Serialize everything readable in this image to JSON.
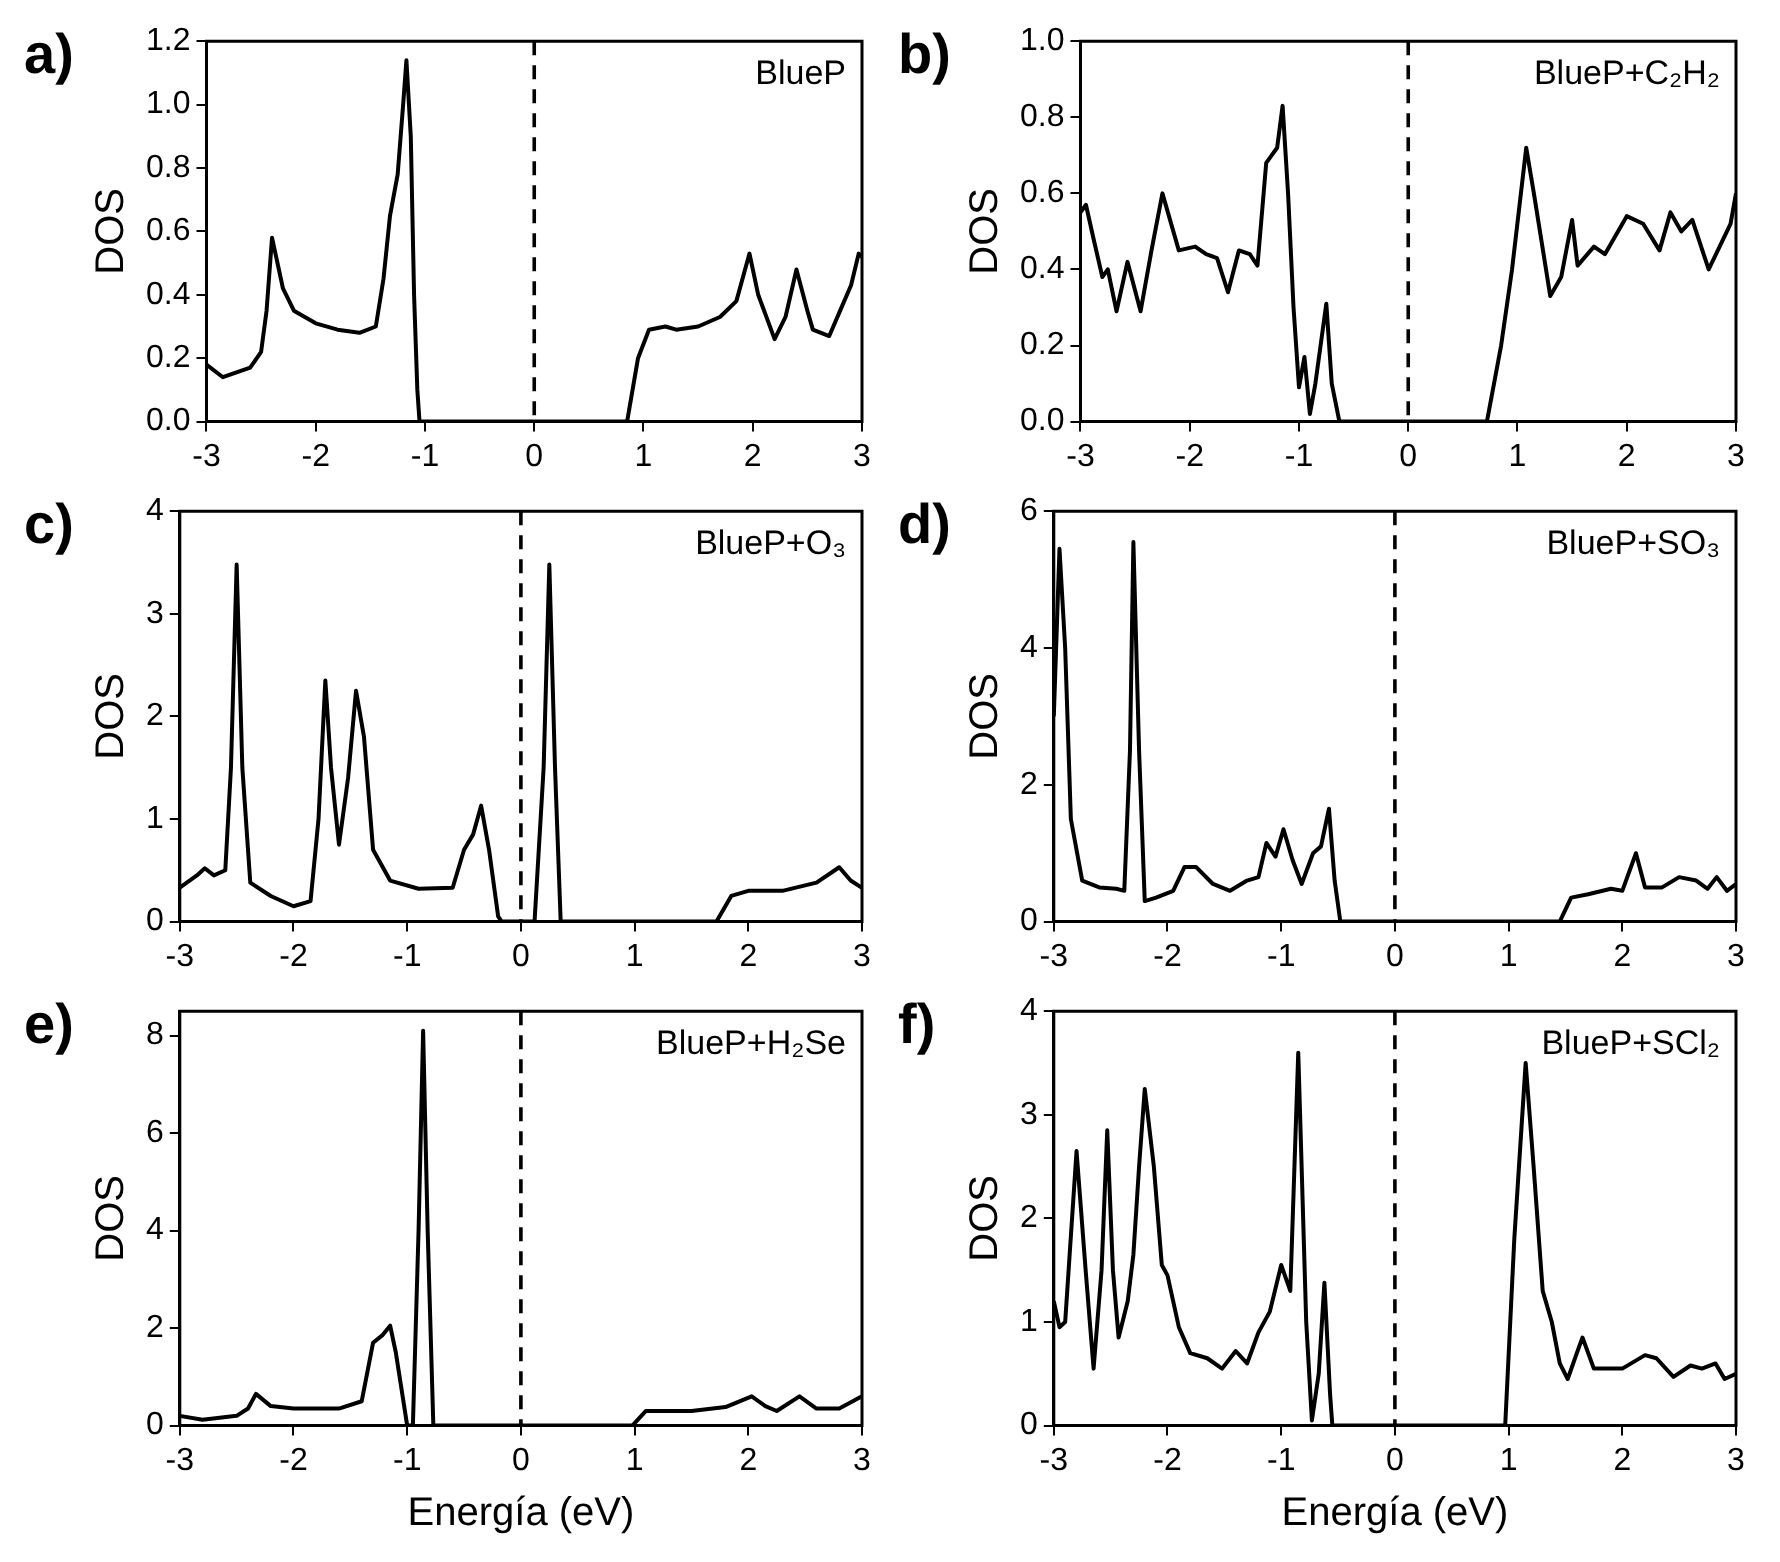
{
  "chart_data": [
    {
      "type": "line",
      "title": "a)",
      "ylabel": "DOS",
      "annotations": [
        "BlueP"
      ],
      "marker": "none",
      "grid": false,
      "xlim": [
        -3,
        3
      ],
      "xticks": [
        -3,
        -2,
        -1,
        0,
        1,
        2,
        3
      ],
      "ylim": [
        0,
        1.2
      ],
      "yticks": [
        {
          "value": 0,
          "label": "0.0"
        },
        {
          "value": 0.2,
          "label": "0.2"
        },
        {
          "value": 0.4,
          "label": "0.4"
        },
        {
          "value": 0.6,
          "label": "0.6"
        },
        {
          "value": 0.8,
          "label": "0.8"
        },
        {
          "value": 1,
          "label": "1.0"
        },
        {
          "value": 1.2,
          "label": "1.2"
        }
      ],
      "ref_lines": [
        {
          "axis": "x",
          "value": 0,
          "color": "#000000",
          "line_style": "dashed"
        }
      ],
      "x": [
        -3,
        -2.85,
        -2.6,
        -2.5,
        -2.45,
        -2.4,
        -2.3,
        -2.2,
        -2,
        -1.8,
        -1.6,
        -1.45,
        -1.38,
        -1.32,
        -1.25,
        -1.2,
        -1.17,
        -1.13,
        -1.1,
        -1.07,
        -1.05,
        0.85,
        0.95,
        1.05,
        1.2,
        1.3,
        1.5,
        1.7,
        1.85,
        1.97,
        2.05,
        2.2,
        2.3,
        2.4,
        2.5,
        2.55,
        2.7,
        2.8,
        2.9,
        2.97,
        3
      ],
      "series": [
        {
          "color": "#000000",
          "values": [
            0.18,
            0.14,
            0.17,
            0.22,
            0.35,
            0.58,
            0.42,
            0.35,
            0.31,
            0.29,
            0.28,
            0.3,
            0.45,
            0.65,
            0.78,
            1.0,
            1.14,
            0.9,
            0.4,
            0.1,
            0,
            0,
            0.2,
            0.29,
            0.3,
            0.29,
            0.3,
            0.33,
            0.38,
            0.53,
            0.4,
            0.26,
            0.33,
            0.48,
            0.35,
            0.29,
            0.27,
            0.35,
            0.43,
            0.53,
            0.52
          ]
        }
      ]
    },
    {
      "type": "line",
      "title": "b)",
      "ylabel": "DOS",
      "annotations": [
        "BlueP+C₂H₂"
      ],
      "marker": "none",
      "grid": false,
      "xlim": [
        -3,
        3
      ],
      "xticks": [
        -3,
        -2,
        -1,
        0,
        1,
        2,
        3
      ],
      "ylim": [
        0,
        1
      ],
      "yticks": [
        {
          "value": 0,
          "label": "0.0"
        },
        {
          "value": 0.2,
          "label": "0.2"
        },
        {
          "value": 0.4,
          "label": "0.4"
        },
        {
          "value": 0.6,
          "label": "0.6"
        },
        {
          "value": 0.8,
          "label": "0.8"
        },
        {
          "value": 1,
          "label": "1.0"
        }
      ],
      "ref_lines": [
        {
          "axis": "x",
          "value": 0,
          "color": "#000000",
          "line_style": "dashed"
        }
      ],
      "x": [
        -3,
        -2.95,
        -2.88,
        -2.8,
        -2.75,
        -2.67,
        -2.57,
        -2.45,
        -2.35,
        -2.25,
        -2.1,
        -1.95,
        -1.85,
        -1.75,
        -1.65,
        -1.55,
        -1.45,
        -1.38,
        -1.3,
        -1.2,
        -1.15,
        -1.1,
        -1.05,
        -1,
        -0.95,
        -0.9,
        -0.85,
        -0.75,
        -0.7,
        -0.63,
        0.72,
        0.85,
        0.95,
        1.08,
        1.15,
        1.3,
        1.4,
        1.5,
        1.55,
        1.7,
        1.8,
        2,
        2.15,
        2.3,
        2.4,
        2.5,
        2.6,
        2.75,
        2.85,
        2.95,
        3
      ],
      "series": [
        {
          "color": "#000000",
          "values": [
            0.55,
            0.57,
            0.48,
            0.38,
            0.4,
            0.29,
            0.42,
            0.29,
            0.45,
            0.6,
            0.45,
            0.46,
            0.44,
            0.43,
            0.34,
            0.45,
            0.44,
            0.41,
            0.68,
            0.72,
            0.83,
            0.6,
            0.3,
            0.09,
            0.17,
            0.02,
            0.1,
            0.31,
            0.1,
            0,
            0,
            0.2,
            0.4,
            0.72,
            0.6,
            0.33,
            0.38,
            0.53,
            0.41,
            0.46,
            0.44,
            0.54,
            0.52,
            0.45,
            0.55,
            0.5,
            0.53,
            0.4,
            0.46,
            0.52,
            0.6
          ]
        }
      ]
    },
    {
      "type": "line",
      "title": "c)",
      "ylabel": "DOS",
      "annotations": [
        "BlueP+O₃"
      ],
      "marker": "none",
      "grid": false,
      "xlim": [
        -3,
        3
      ],
      "xticks": [
        -3,
        -2,
        -1,
        0,
        1,
        2,
        3
      ],
      "ylim": [
        0,
        4
      ],
      "yticks": [
        0,
        1,
        2,
        3,
        4
      ],
      "ref_lines": [
        {
          "axis": "x",
          "value": 0,
          "color": "#000000",
          "line_style": "dashed"
        }
      ],
      "x": [
        -3,
        -2.85,
        -2.78,
        -2.7,
        -2.6,
        -2.55,
        -2.5,
        -2.45,
        -2.38,
        -2.2,
        -2,
        -1.85,
        -1.78,
        -1.72,
        -1.67,
        -1.6,
        -1.52,
        -1.45,
        -1.38,
        -1.3,
        -1.15,
        -0.9,
        -0.6,
        -0.5,
        -0.42,
        -0.35,
        -0.28,
        -0.2,
        -0.17,
        0.12,
        0.2,
        0.25,
        0.3,
        0.35,
        1.72,
        1.85,
        2,
        2.3,
        2.6,
        2.8,
        2.9,
        3
      ],
      "series": [
        {
          "color": "#000000",
          "values": [
            0.33,
            0.45,
            0.52,
            0.45,
            0.5,
            1.5,
            3.48,
            1.5,
            0.38,
            0.25,
            0.15,
            0.2,
            1,
            2.35,
            1.5,
            0.75,
            1.4,
            2.25,
            1.8,
            0.7,
            0.4,
            0.32,
            0.33,
            0.7,
            0.85,
            1.13,
            0.7,
            0.05,
            0,
            0,
            1.5,
            3.48,
            1.5,
            0,
            0,
            0.25,
            0.3,
            0.3,
            0.38,
            0.53,
            0.4,
            0.33
          ]
        }
      ]
    },
    {
      "type": "line",
      "title": "d)",
      "ylabel": "DOS",
      "annotations": [
        "BlueP+SO₃"
      ],
      "marker": "none",
      "grid": false,
      "xlim": [
        -3,
        3
      ],
      "xticks": [
        -3,
        -2,
        -1,
        0,
        1,
        2,
        3
      ],
      "ylim": [
        0,
        6
      ],
      "yticks": [
        0,
        2,
        4,
        6
      ],
      "ref_lines": [
        {
          "axis": "x",
          "value": 0,
          "color": "#000000",
          "line_style": "dashed"
        }
      ],
      "x": [
        -3,
        -2.95,
        -2.9,
        -2.85,
        -2.75,
        -2.6,
        -2.45,
        -2.38,
        -2.33,
        -2.3,
        -2.25,
        -2.2,
        -2.1,
        -1.95,
        -1.85,
        -1.75,
        -1.6,
        -1.45,
        -1.3,
        -1.2,
        -1.13,
        -1.05,
        -0.98,
        -0.9,
        -0.82,
        -0.72,
        -0.65,
        -0.58,
        -0.53,
        -0.48,
        1.45,
        1.55,
        1.7,
        1.9,
        2,
        2.12,
        2.2,
        2.35,
        2.5,
        2.65,
        2.75,
        2.83,
        2.92,
        3
      ],
      "series": [
        {
          "color": "#000000",
          "values": [
            3,
            5.45,
            4,
            1.5,
            0.6,
            0.5,
            0.48,
            0.45,
            2.5,
            5.55,
            2.5,
            0.3,
            0.35,
            0.45,
            0.8,
            0.8,
            0.55,
            0.45,
            0.6,
            0.65,
            1.15,
            0.95,
            1.35,
            0.9,
            0.55,
            1,
            1.1,
            1.65,
            0.6,
            0,
            0,
            0.35,
            0.4,
            0.48,
            0.45,
            1,
            0.5,
            0.5,
            0.65,
            0.6,
            0.48,
            0.65,
            0.45,
            0.55
          ]
        }
      ]
    },
    {
      "type": "line",
      "title": "e)",
      "xlabel": "Energía (eV)",
      "ylabel": "DOS",
      "annotations": [
        "BlueP+H₂Se"
      ],
      "marker": "none",
      "grid": false,
      "xlim": [
        -3,
        3
      ],
      "xticks": [
        -3,
        -2,
        -1,
        0,
        1,
        2,
        3
      ],
      "ylim": [
        0,
        8.5
      ],
      "yticks": [
        0,
        2,
        4,
        6,
        8
      ],
      "ref_lines": [
        {
          "axis": "x",
          "value": 0,
          "color": "#000000",
          "line_style": "dashed"
        }
      ],
      "x": [
        -3,
        -2.8,
        -2.5,
        -2.4,
        -2.33,
        -2.2,
        -2,
        -1.6,
        -1.4,
        -1.3,
        -1.22,
        -1.15,
        -1.1,
        -1,
        -0.95,
        -0.9,
        -0.86,
        -0.82,
        -0.77,
        0.98,
        1.1,
        1.5,
        1.8,
        2.03,
        2.15,
        2.25,
        2.45,
        2.6,
        2.8,
        3
      ],
      "series": [
        {
          "color": "#000000",
          "values": [
            0.2,
            0.12,
            0.2,
            0.35,
            0.65,
            0.4,
            0.35,
            0.35,
            0.5,
            1.7,
            1.85,
            2.05,
            1.5,
            0,
            0,
            4,
            8.1,
            4,
            0,
            0,
            0.3,
            0.3,
            0.38,
            0.6,
            0.4,
            0.3,
            0.6,
            0.35,
            0.35,
            0.6
          ]
        }
      ]
    },
    {
      "type": "line",
      "title": "f)",
      "xlabel": "Energía (eV)",
      "ylabel": "DOS",
      "annotations": [
        "BlueP+SCl₂"
      ],
      "marker": "none",
      "grid": false,
      "xlim": [
        -3,
        3
      ],
      "xticks": [
        -3,
        -2,
        -1,
        0,
        1,
        2,
        3
      ],
      "ylim": [
        0,
        4
      ],
      "yticks": [
        0,
        1,
        2,
        3,
        4
      ],
      "ref_lines": [
        {
          "axis": "x",
          "value": 0,
          "color": "#000000",
          "line_style": "dashed"
        }
      ],
      "x": [
        -3,
        -2.95,
        -2.9,
        -2.8,
        -2.72,
        -2.65,
        -2.58,
        -2.53,
        -2.48,
        -2.43,
        -2.35,
        -2.3,
        -2.25,
        -2.2,
        -2.12,
        -2.05,
        -2,
        -1.9,
        -1.8,
        -1.65,
        -1.52,
        -1.4,
        -1.3,
        -1.2,
        -1.1,
        -1,
        -0.92,
        -0.85,
        -0.78,
        -0.73,
        -0.67,
        -0.62,
        -0.57,
        -0.55,
        0.97,
        1.05,
        1.15,
        1.22,
        1.3,
        1.38,
        1.45,
        1.52,
        1.6,
        1.65,
        1.75,
        2,
        2.2,
        2.3,
        2.45,
        2.6,
        2.7,
        2.82,
        2.9,
        3
      ],
      "series": [
        {
          "color": "#000000",
          "values": [
            1.2,
            0.95,
            1,
            2.65,
            1.5,
            0.55,
            1.5,
            2.85,
            1.5,
            0.85,
            1.2,
            1.65,
            2.5,
            3.25,
            2.5,
            1.55,
            1.45,
            0.95,
            0.7,
            0.65,
            0.55,
            0.72,
            0.6,
            0.9,
            1.1,
            1.55,
            1.3,
            3.6,
            1,
            0.05,
            0.5,
            1.38,
            0.3,
            0,
            0,
            1.8,
            3.5,
            2.5,
            1.3,
            1,
            0.6,
            0.45,
            0.7,
            0.85,
            0.55,
            0.55,
            0.68,
            0.65,
            0.47,
            0.58,
            0.55,
            0.6,
            0.45,
            0.5
          ]
        }
      ]
    }
  ]
}
